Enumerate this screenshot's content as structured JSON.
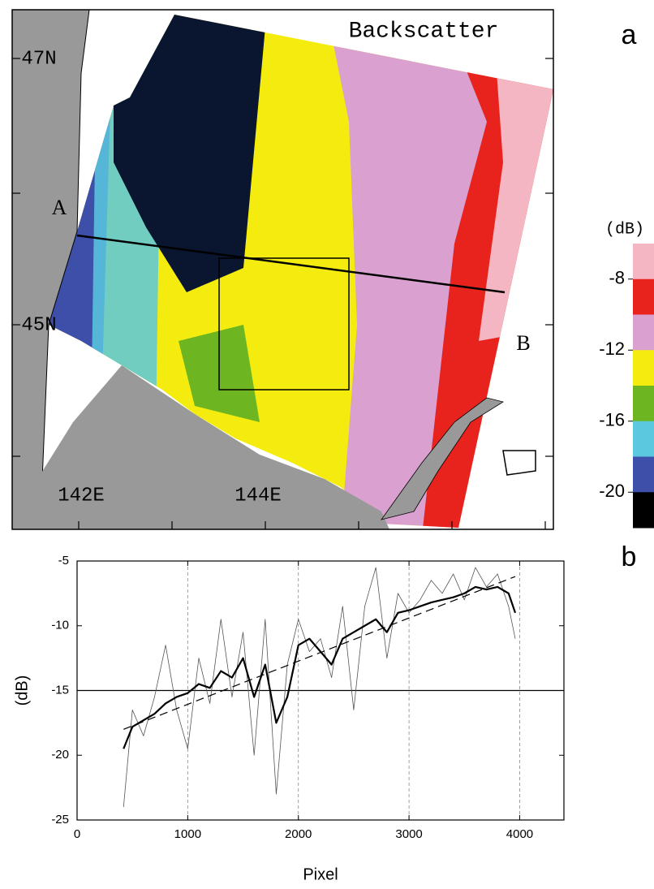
{
  "chart_data": [
    {
      "type": "map",
      "panel": "a",
      "title": "Backscatter",
      "lat_labels": [
        "47N",
        "45N"
      ],
      "lon_labels": [
        "142E",
        "144E"
      ],
      "point_labels": [
        "A",
        "B"
      ],
      "colorbar": {
        "unit": "(dB)",
        "lim": [
          -22,
          -6
        ],
        "ticks": [
          -8,
          -12,
          -16,
          -20
        ],
        "colors": [
          "#f4b6c2",
          "#e8231e",
          "#d9a0d0",
          "#f5ec0f",
          "#6db521",
          "#5bc8e0",
          "#3d4fa8",
          "#000000"
        ]
      }
    },
    {
      "type": "line",
      "panel": "b",
      "xlabel": "Pixel",
      "ylabel": "(dB)",
      "xlim": [
        0,
        4400
      ],
      "ylim": [
        -25,
        -5
      ],
      "xticks": [
        0,
        1000,
        2000,
        3000,
        4000
      ],
      "yticks": [
        -25,
        -20,
        -15,
        -10,
        -5
      ],
      "grid_x": true,
      "hline": -15,
      "series": [
        {
          "color": "#555555",
          "width": 0.8,
          "dash": false,
          "x": [
            420,
            500,
            600,
            700,
            800,
            900,
            1000,
            1100,
            1200,
            1300,
            1400,
            1500,
            1600,
            1700,
            1800,
            1900,
            2000,
            2100,
            2200,
            2300,
            2400,
            2500,
            2600,
            2700,
            2800,
            2900,
            3000,
            3100,
            3200,
            3300,
            3400,
            3500,
            3600,
            3700,
            3800,
            3900,
            3960
          ],
          "values": [
            -24,
            -16.5,
            -18.5,
            -15.5,
            -11.5,
            -16.5,
            -19.5,
            -12.5,
            -16,
            -9.5,
            -15.5,
            -10.5,
            -20,
            -9.5,
            -23,
            -13,
            -9.5,
            -12,
            -11,
            -14,
            -8.5,
            -16.5,
            -8.5,
            -5.5,
            -12.5,
            -7.5,
            -9,
            -8,
            -6.5,
            -7.5,
            -6,
            -8,
            -5.5,
            -7,
            -6,
            -8.5,
            -11
          ]
        },
        {
          "color": "#000000",
          "width": 2.2,
          "dash": false,
          "x": [
            420,
            500,
            600,
            700,
            800,
            900,
            1000,
            1100,
            1200,
            1300,
            1400,
            1500,
            1600,
            1700,
            1800,
            1900,
            2000,
            2100,
            2200,
            2300,
            2400,
            2500,
            2600,
            2700,
            2800,
            2900,
            3000,
            3100,
            3200,
            3300,
            3400,
            3500,
            3600,
            3700,
            3800,
            3900,
            3960
          ],
          "values": [
            -19.5,
            -17.8,
            -17.3,
            -16.8,
            -16,
            -15.5,
            -15.2,
            -14.5,
            -14.8,
            -13.5,
            -14,
            -12.5,
            -15.5,
            -13,
            -17.5,
            -15.5,
            -11.5,
            -11,
            -12,
            -13,
            -11,
            -10.5,
            -10,
            -9.5,
            -10.5,
            -9,
            -8.8,
            -8.5,
            -8.2,
            -8,
            -7.8,
            -7.5,
            -7,
            -7.2,
            -7,
            -7.5,
            -9
          ]
        },
        {
          "color": "#000000",
          "width": 1.2,
          "dash": true,
          "x": [
            420,
            3960
          ],
          "values": [
            -18,
            -6.2
          ]
        }
      ]
    }
  ]
}
